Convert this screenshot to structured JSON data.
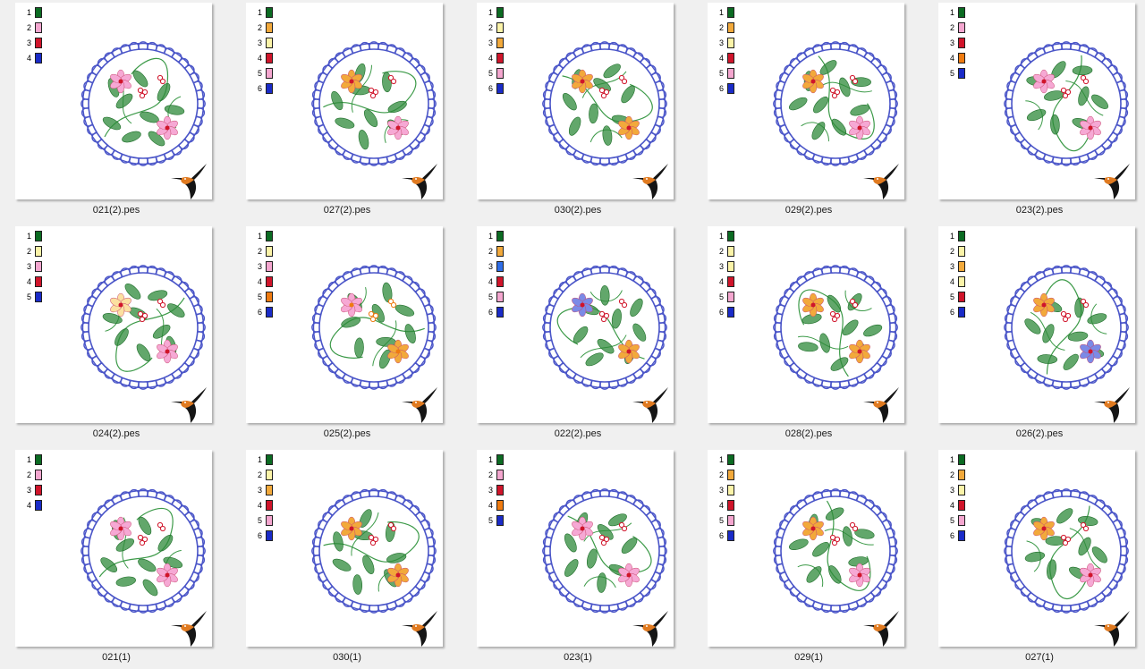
{
  "files": [
    {
      "name": "021(2).pes",
      "threads": [
        "#0b6b22",
        "#f4a6cf",
        "#d0142a",
        "#1a2bc8"
      ],
      "flowers": [
        "#f6a8d4",
        "#f6a8d4"
      ],
      "accent": "#d0142a"
    },
    {
      "name": "027(2).pes",
      "threads": [
        "#0b6b22",
        "#f2a93b",
        "#fbf3a8",
        "#d0142a",
        "#f4a6cf",
        "#1a2bc8"
      ],
      "flowers": [
        "#f2a93b",
        "#f6a8d4"
      ],
      "accent": "#d0142a"
    },
    {
      "name": "030(2).pes",
      "threads": [
        "#0b6b22",
        "#fbf3a8",
        "#f2a93b",
        "#d0142a",
        "#f4a6cf",
        "#1a2bc8"
      ],
      "flowers": [
        "#f2a93b",
        "#f2a93b"
      ],
      "accent": "#d0142a"
    },
    {
      "name": "029(2).pes",
      "threads": [
        "#0b6b22",
        "#f2a93b",
        "#fbf3a8",
        "#d0142a",
        "#f4a6cf",
        "#1a2bc8"
      ],
      "flowers": [
        "#f2a93b",
        "#f6a8d4"
      ],
      "accent": "#d0142a"
    },
    {
      "name": "023(2).pes",
      "threads": [
        "#0b6b22",
        "#f4a6cf",
        "#d0142a",
        "#ef7b10",
        "#1a2bc8"
      ],
      "flowers": [
        "#f6a8d4",
        "#f6a8d4"
      ],
      "accent": "#d0142a"
    },
    {
      "name": "024(2).pes",
      "threads": [
        "#0b6b22",
        "#fbf3a8",
        "#f4a6cf",
        "#d0142a",
        "#1a2bc8"
      ],
      "flowers": [
        "#fbe0a0",
        "#f6a8d4"
      ],
      "accent": "#d0142a"
    },
    {
      "name": "025(2).pes",
      "threads": [
        "#0b6b22",
        "#fbf3a8",
        "#f4a6cf",
        "#d0142a",
        "#ef7b10",
        "#1a2bc8"
      ],
      "flowers": [
        "#f6a8d4",
        "#f2a93b"
      ],
      "accent": "#ef7b10"
    },
    {
      "name": "022(2).pes",
      "threads": [
        "#0b6b22",
        "#f2a93b",
        "#2f6ee8",
        "#d0142a",
        "#f4a6cf",
        "#1a2bc8"
      ],
      "flowers": [
        "#7b8ae6",
        "#f2a93b"
      ],
      "accent": "#d0142a"
    },
    {
      "name": "028(2).pes",
      "threads": [
        "#0b6b22",
        "#fbf3a8",
        "#fbf3a8",
        "#d0142a",
        "#f4a6cf",
        "#1a2bc8"
      ],
      "flowers": [
        "#f2a93b",
        "#f2a93b"
      ],
      "accent": "#d0142a"
    },
    {
      "name": "026(2).pes",
      "threads": [
        "#0b6b22",
        "#fbf3a8",
        "#f2a93b",
        "#fbf3a8",
        "#d0142a",
        "#1a2bc8"
      ],
      "flowers": [
        "#f2a93b",
        "#7b8ae6"
      ],
      "accent": "#d0142a"
    },
    {
      "name": "021(1)",
      "threads": [
        "#0b6b22",
        "#f4a6cf",
        "#d0142a",
        "#1a2bc8"
      ],
      "flowers": [
        "#f6a8d4",
        "#f6a8d4"
      ],
      "accent": "#d0142a"
    },
    {
      "name": "030(1)",
      "threads": [
        "#0b6b22",
        "#fbf3a8",
        "#f2a93b",
        "#d0142a",
        "#f4a6cf",
        "#1a2bc8"
      ],
      "flowers": [
        "#f2a93b",
        "#f2a93b"
      ],
      "accent": "#d0142a"
    },
    {
      "name": "023(1)",
      "threads": [
        "#0b6b22",
        "#f4a6cf",
        "#d0142a",
        "#ef7b10",
        "#1a2bc8"
      ],
      "flowers": [
        "#f6a8d4",
        "#f6a8d4"
      ],
      "accent": "#d0142a"
    },
    {
      "name": "029(1)",
      "threads": [
        "#0b6b22",
        "#f2a93b",
        "#fbf3a8",
        "#d0142a",
        "#f4a6cf",
        "#1a2bc8"
      ],
      "flowers": [
        "#f2a93b",
        "#f6a8d4"
      ],
      "accent": "#d0142a"
    },
    {
      "name": "027(1)",
      "threads": [
        "#0b6b22",
        "#f2a93b",
        "#fbf3a8",
        "#d0142a",
        "#f4a6cf",
        "#1a2bc8"
      ],
      "flowers": [
        "#f2a93b",
        "#f6a8d4"
      ],
      "accent": "#d0142a"
    }
  ],
  "colors": {
    "border_blue": "#4a55c8",
    "leaf_green": "#2e8a3a",
    "stem_green": "#3c9a48",
    "bird_dark": "#151515",
    "bird_orange": "#e07a20"
  },
  "icons": {
    "thumbnail_logo": "hummingbird-icon"
  }
}
